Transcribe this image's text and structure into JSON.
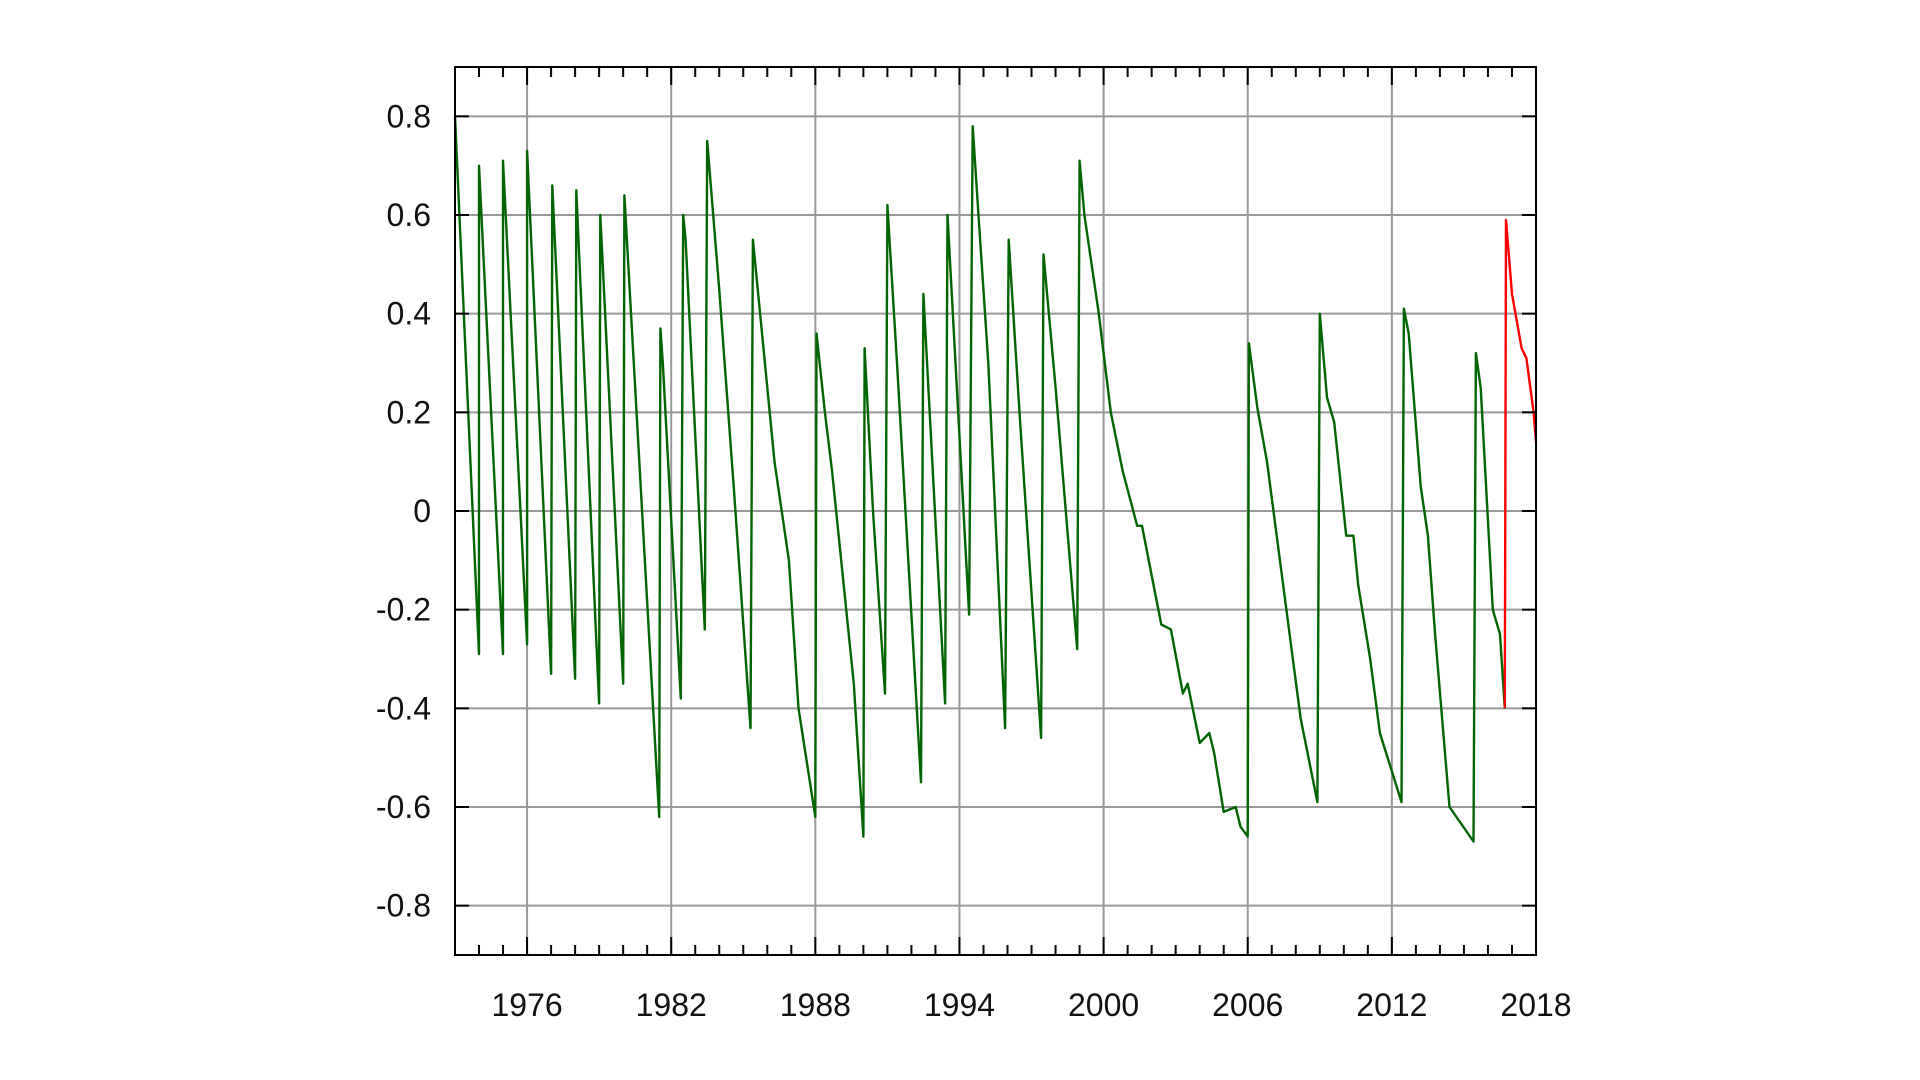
{
  "chart_data": {
    "type": "line",
    "title": "",
    "xlabel": "",
    "ylabel": "",
    "xlim": [
      1973.0,
      2018.0
    ],
    "ylim": [
      -0.9,
      0.9
    ],
    "x_ticks": [
      1976,
      1982,
      1988,
      1994,
      2000,
      2006,
      2012,
      2018
    ],
    "x_tick_labels": [
      "1976",
      "1982",
      "1988",
      "1994",
      "2000",
      "2006",
      "2012",
      "2018"
    ],
    "y_ticks": [
      0.8,
      0.6,
      0.4,
      0.2,
      0.0,
      -0.2,
      -0.4,
      -0.6,
      -0.8
    ],
    "y_tick_labels": [
      "0.8",
      "0.6",
      "0.4",
      "0.2",
      "0",
      "-0.2",
      "-0.4",
      "-0.6",
      "-0.8"
    ],
    "x_minor_step_years": 1,
    "grid": true,
    "legend": "none",
    "colors": {
      "series_1": "#006400",
      "series_2": "#ff0000",
      "grid": "#999999",
      "axes": "#000000"
    },
    "series": [
      {
        "x": [
          1973.0,
          1974.0,
          1974.0,
          1975.0,
          1975.0,
          1976.0,
          1976.0,
          1977.0,
          1977.05,
          1978.0,
          1978.05,
          1979.0,
          1979.05,
          1980.0,
          1980.05,
          1981.5,
          1981.55,
          1981.65,
          1982.4,
          1982.5,
          1982.6,
          1983.4,
          1983.5,
          1984.0,
          1984.6,
          1985.3,
          1985.4,
          1985.9,
          1986.3,
          1986.9,
          1987.3,
          1988.0,
          1988.05,
          1988.4,
          1988.7,
          1989.6,
          1990.0,
          1990.05,
          1990.4,
          1990.9,
          1991.0,
          1991.4,
          1992.4,
          1992.5,
          1993.4,
          1993.5,
          1994.4,
          1994.55,
          1994.75,
          1995.2,
          1995.9,
          1996.05,
          1996.5,
          1997.4,
          1997.5,
          1998.0,
          1998.9,
          1999.0,
          1999.2,
          1999.5,
          1999.8,
          2000.3,
          2000.8,
          2001.4,
          2001.6,
          2002.0,
          2002.4,
          2002.8,
          2003.3,
          2003.5,
          2004.0,
          2004.4,
          2004.6,
          2005.0,
          2005.5,
          2005.7,
          2006.0,
          2006.05,
          2006.4,
          2006.8,
          2007.5,
          2008.2,
          2008.9,
          2009.0,
          2009.3,
          2009.6,
          2010.1,
          2010.4,
          2010.6,
          2011.1,
          2011.5,
          2012.4,
          2012.5,
          2012.7,
          2013.2,
          2013.5,
          2013.8,
          2014.4,
          2015.4,
          2015.5,
          2015.7,
          2016.2,
          2016.5,
          2016.7
        ],
        "values": [
          0.8,
          -0.29,
          0.7,
          -0.29,
          0.71,
          -0.27,
          0.73,
          -0.33,
          0.66,
          -0.34,
          0.65,
          -0.39,
          0.6,
          -0.35,
          0.64,
          -0.62,
          0.37,
          0.3,
          -0.38,
          0.6,
          0.55,
          -0.24,
          0.75,
          0.45,
          0.05,
          -0.44,
          0.55,
          0.3,
          0.1,
          -0.1,
          -0.4,
          -0.62,
          0.36,
          0.2,
          0.08,
          -0.35,
          -0.66,
          0.33,
          0.0,
          -0.37,
          0.62,
          0.3,
          -0.55,
          0.44,
          -0.39,
          0.6,
          -0.21,
          0.78,
          0.63,
          0.3,
          -0.44,
          0.55,
          0.2,
          -0.46,
          0.52,
          0.25,
          -0.28,
          0.71,
          0.6,
          0.5,
          0.4,
          0.2,
          0.08,
          -0.03,
          -0.03,
          -0.13,
          -0.23,
          -0.24,
          -0.37,
          -0.35,
          -0.47,
          -0.45,
          -0.49,
          -0.61,
          -0.6,
          -0.64,
          -0.66,
          0.34,
          0.21,
          0.1,
          -0.16,
          -0.42,
          -0.59,
          0.4,
          0.23,
          0.18,
          -0.05,
          -0.05,
          -0.15,
          -0.3,
          -0.45,
          -0.59,
          0.41,
          0.36,
          0.05,
          -0.05,
          -0.25,
          -0.6,
          -0.67,
          0.32,
          0.25,
          -0.2,
          -0.25,
          -0.4
        ]
      },
      {
        "x": [
          2016.7,
          2016.75,
          2017.0,
          2017.4,
          2017.6,
          2017.9,
          2018.0
        ],
        "values": [
          -0.4,
          0.59,
          0.44,
          0.33,
          0.31,
          0.2,
          0.14
        ]
      }
    ]
  }
}
